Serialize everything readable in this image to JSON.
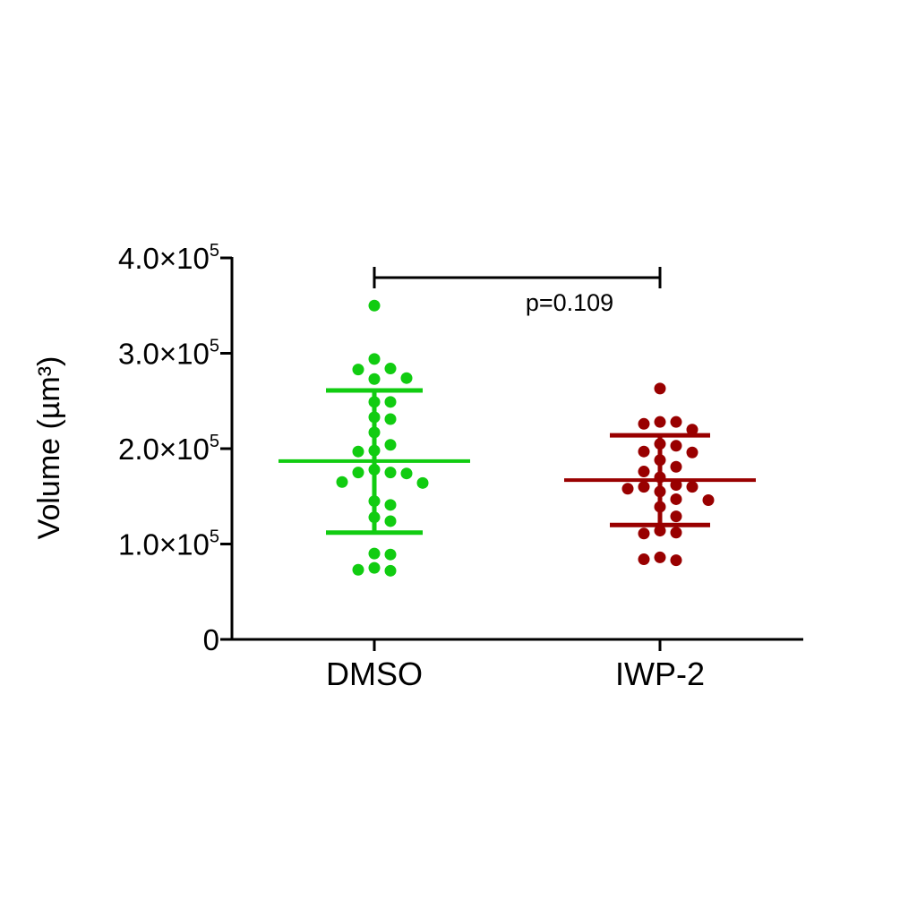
{
  "chart_data": {
    "type": "scatter",
    "ylabel": "Volume (µm³)",
    "ylim": [
      0,
      400000
    ],
    "yticks": [
      {
        "value": 0,
        "mantissa": "0",
        "exponent": ""
      },
      {
        "value": 100000,
        "mantissa": "1.0×10",
        "exponent": "5"
      },
      {
        "value": 200000,
        "mantissa": "2.0×10",
        "exponent": "5"
      },
      {
        "value": 300000,
        "mantissa": "3.0×10",
        "exponent": "5"
      },
      {
        "value": 400000,
        "mantissa": "4.0×10",
        "exponent": "5"
      }
    ],
    "categories": [
      "DMSO",
      "IWP-2"
    ],
    "groups": [
      {
        "category": "DMSO",
        "color": "#11cc11",
        "mean": 187000,
        "sd_upper": 261000,
        "sd_lower": 112000,
        "points": [
          350000,
          294000,
          284000,
          283000,
          273000,
          274000,
          249000,
          249000,
          233000,
          231000,
          217000,
          204000,
          198000,
          197000,
          178000,
          175000,
          175000,
          174000,
          165000,
          164000,
          145000,
          141000,
          128000,
          124000,
          90000,
          89000,
          75000,
          72000,
          73000
        ]
      },
      {
        "category": "IWP-2",
        "color": "#990000",
        "mean": 167000,
        "sd_upper": 214000,
        "sd_lower": 120000,
        "points": [
          263000,
          228000,
          228000,
          226000,
          220000,
          205000,
          203000,
          197000,
          196000,
          188000,
          181000,
          176000,
          170000,
          162000,
          160000,
          160000,
          158000,
          155000,
          147000,
          146000,
          139000,
          129000,
          114000,
          112000,
          111000,
          86000,
          83000,
          84000
        ]
      }
    ],
    "annotation": {
      "text": "p=0.109",
      "from": "DMSO",
      "to": "IWP-2"
    }
  }
}
